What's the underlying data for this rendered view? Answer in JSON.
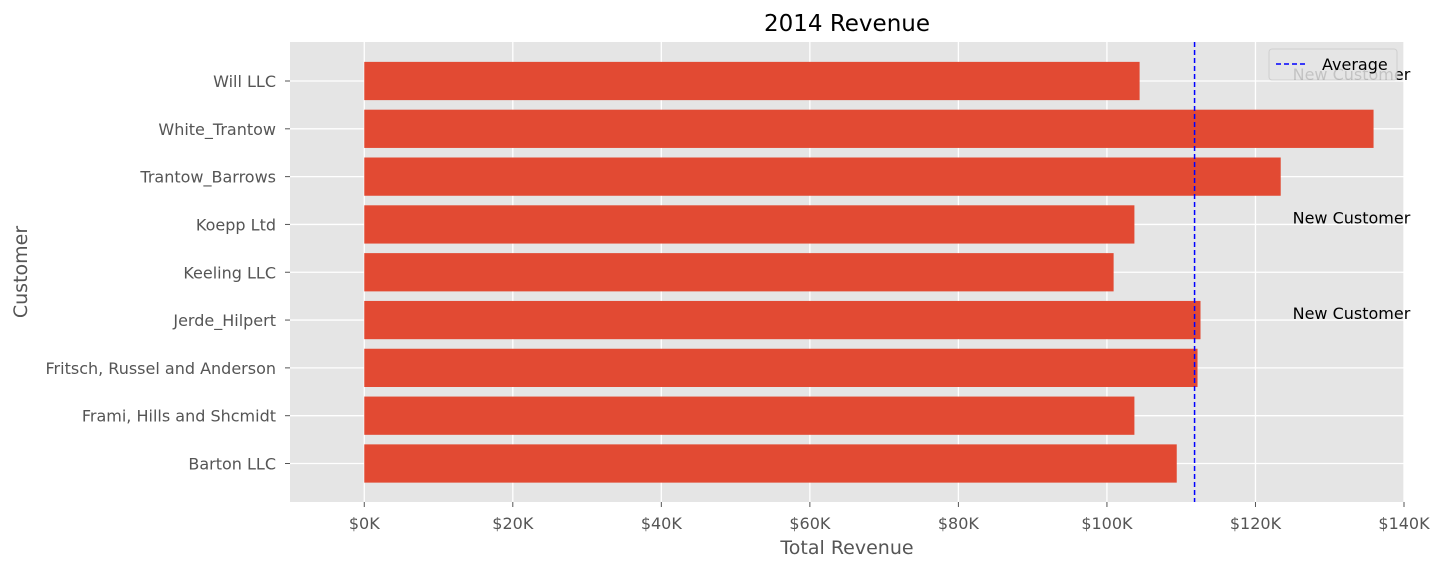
{
  "chart_data": {
    "type": "bar",
    "orientation": "horizontal",
    "title": "2014 Revenue",
    "xlabel": "Total Revenue",
    "ylabel": "Customer",
    "xlim": [
      -10000,
      140000
    ],
    "xticks": [
      0,
      20000,
      40000,
      60000,
      80000,
      100000,
      120000,
      140000
    ],
    "xtick_labels": [
      "$0K",
      "$20K",
      "$40K",
      "$60K",
      "$80K",
      "$100K",
      "$120K",
      "$140K"
    ],
    "categories": [
      "Barton LLC",
      "Frami, Hills and Shcmidt",
      "Fritsch, Russel and Anderson",
      "Jerde_Hilpert",
      "Keeling LLC",
      "Koepp Ltd",
      "Trantow_Barrows",
      "White_Trantow",
      "Will LLC"
    ],
    "values": [
      109400,
      103700,
      112200,
      112600,
      100900,
      103700,
      123400,
      135900,
      104400
    ],
    "bar_color": "#E24A33",
    "average": 111800,
    "average_line_color": "#0000ff",
    "legend": {
      "position": "top-right",
      "entries": [
        "Average"
      ]
    },
    "annotations": [
      {
        "text": "New Customer",
        "x": 125000,
        "category": "Will LLC"
      },
      {
        "text": "New Customer",
        "x": 125000,
        "category": "Koepp Ltd"
      },
      {
        "text": "New Customer",
        "x": 125000,
        "category": "Jerde_Hilpert"
      }
    ],
    "grid": true,
    "background_color": "#E5E5E5",
    "grid_color": "#ffffff"
  }
}
